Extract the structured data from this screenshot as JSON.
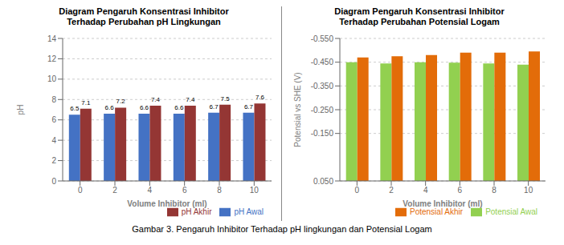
{
  "caption": "Gambar 3. Pengaruh Inhibitor Terhadap pH lingkungan dan Potensial Logam",
  "chart_data": [
    {
      "type": "bar",
      "title": "Diagram Pengaruh Konsentrasi Inhibitor\nTerhadap Perubahan pH Lingkungan",
      "xlabel": "Volume Inhibitor (ml)",
      "ylabel": "pH",
      "categories": [
        0,
        2,
        4,
        6,
        8,
        10
      ],
      "series": [
        {
          "name": "pH Awal",
          "color": "#4472C4",
          "values": [
            6.5,
            6.6,
            6.6,
            6.6,
            6.7,
            6.7
          ]
        },
        {
          "name": "pH Akhir",
          "color": "#943634",
          "values": [
            7.1,
            7.2,
            7.4,
            7.4,
            7.5,
            7.6
          ]
        }
      ],
      "ylim": [
        0,
        14
      ],
      "yticks": [
        0,
        2,
        4,
        6,
        8,
        10,
        12,
        14
      ],
      "grid": true,
      "legend": "lower right",
      "data_labels": true
    },
    {
      "type": "bar",
      "title": "Diagram Pengaruh Konsentrasi Inhibitor\nTerhadap Perubahan Potensial Logam",
      "xlabel": "Volume Inhibitor (ml)",
      "ylabel": "Potensial vs SHE (V)",
      "categories": [
        0,
        2,
        4,
        6,
        8,
        10
      ],
      "series": [
        {
          "name": "Potensial Awal",
          "color": "#92D050",
          "values": [
            -0.45,
            -0.445,
            -0.45,
            -0.448,
            -0.445,
            -0.44
          ]
        },
        {
          "name": "Potensial Akhir",
          "color": "#E36C09",
          "values": [
            -0.47,
            -0.475,
            -0.48,
            -0.49,
            -0.49,
            -0.495
          ]
        }
      ],
      "ylim": [
        0.05,
        -0.55
      ],
      "yticks": [
        {
          "value": -0.55,
          "label": "-0.550"
        },
        {
          "value": -0.45,
          "label": "-0.450"
        },
        {
          "value": -0.35,
          "label": "-0.350"
        },
        {
          "value": -0.25,
          "label": "-0.250"
        },
        {
          "value": -0.15,
          "label": "-0.150"
        },
        {
          "value": 0.05,
          "label": "0.050"
        }
      ],
      "grid": true,
      "legend": "lower right",
      "data_labels": false
    }
  ]
}
